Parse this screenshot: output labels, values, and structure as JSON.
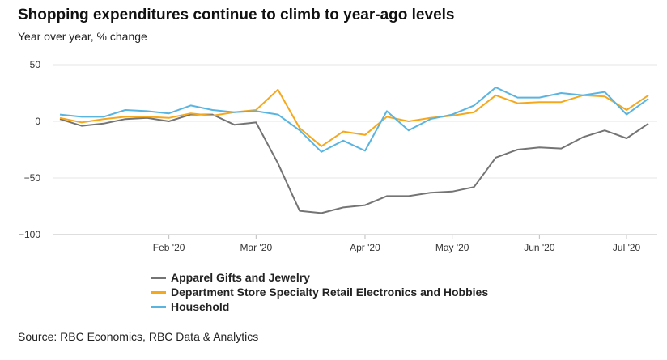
{
  "header": {
    "title": "Shopping expenditures continue to climb to year-ago levels",
    "subtitle": "Year over year, % change"
  },
  "footer": {
    "source": "Source: RBC Economics, RBC Data & Analytics"
  },
  "chart_data": {
    "type": "line",
    "title": "Shopping expenditures continue to climb to year-ago levels",
    "ylabel": "Year over year, % change",
    "ylim": [
      -100,
      50
    ],
    "yticks": [
      50,
      0,
      -50,
      -100
    ],
    "yticklabels": [
      "50",
      "0",
      "−50",
      "−100"
    ],
    "grid": true,
    "legend_position": "bottom",
    "x": [
      "2020-01-04",
      "2020-01-11",
      "2020-01-18",
      "2020-01-25",
      "2020-02-01",
      "2020-02-08",
      "2020-02-15",
      "2020-02-22",
      "2020-02-29",
      "2020-03-07",
      "2020-03-14",
      "2020-03-21",
      "2020-03-28",
      "2020-04-04",
      "2020-04-11",
      "2020-04-18",
      "2020-04-25",
      "2020-05-02",
      "2020-05-09",
      "2020-05-16",
      "2020-05-23",
      "2020-05-30",
      "2020-06-06",
      "2020-06-13",
      "2020-06-20",
      "2020-06-27",
      "2020-07-04",
      "2020-07-11",
      "2020-07-18"
    ],
    "xticks": [
      {
        "label": "Feb '20",
        "date": "2020-02-08"
      },
      {
        "label": "Mar '20",
        "date": "2020-03-07"
      },
      {
        "label": "Apr '20",
        "date": "2020-04-11"
      },
      {
        "label": "May '20",
        "date": "2020-05-09"
      },
      {
        "label": "Jun '20",
        "date": "2020-06-06"
      },
      {
        "label": "Jul '20",
        "date": "2020-07-04"
      }
    ],
    "series": [
      {
        "name": "Apparel Gifts and Jewelry",
        "color": "#747474",
        "values": [
          2,
          -4,
          -2,
          2,
          3,
          0,
          6,
          6,
          -3,
          -1,
          -37,
          -79,
          -81,
          -76,
          -74,
          -66,
          -66,
          -63,
          -62,
          -58,
          -32,
          -25,
          -23,
          -24,
          -14,
          -8,
          -15,
          -2,
          null
        ]
      },
      {
        "name": "Department Store Specialty Retail Electronics and Hobbies",
        "color": "#f5a81c",
        "values": [
          3,
          -1,
          2,
          4,
          4,
          3,
          7,
          5,
          8,
          10,
          28,
          -6,
          -22,
          -9,
          -12,
          4,
          0,
          3,
          5,
          8,
          23,
          16,
          17,
          17,
          23,
          22,
          10,
          23,
          null
        ]
      },
      {
        "name": "Household",
        "color": "#5ab4e0",
        "values": [
          6,
          4,
          4,
          10,
          9,
          7,
          14,
          10,
          8,
          9,
          6,
          -8,
          -27,
          -17,
          -26,
          9,
          -8,
          2,
          6,
          14,
          30,
          21,
          21,
          25,
          23,
          26,
          6,
          20,
          null
        ]
      }
    ]
  }
}
